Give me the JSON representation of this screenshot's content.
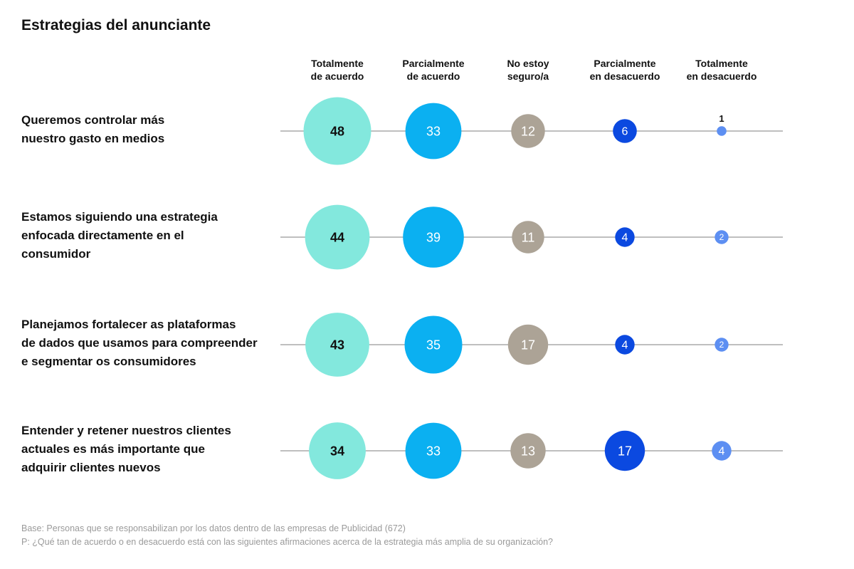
{
  "title": "Estrategias del anunciante",
  "chart_data": {
    "type": "bubble-grid",
    "title": "Estrategias del anunciante",
    "columns": [
      {
        "lines": [
          "Totalmente",
          "de acuerdo"
        ],
        "color": "#83e8dd",
        "text_color": "#111111"
      },
      {
        "lines": [
          "Parcialmente",
          "de acuerdo"
        ],
        "color": "#0bb0f1",
        "text_color": "#ffffff"
      },
      {
        "lines": [
          "No estoy",
          "seguro/a"
        ],
        "color": "#aca396",
        "text_color": "#ffffff"
      },
      {
        "lines": [
          "Parcialmente",
          "en desacuerdo"
        ],
        "color": "#0b49e0",
        "text_color": "#ffffff"
      },
      {
        "lines": [
          "Totalmente",
          "en desacuerdo"
        ],
        "color": "#5d8ff2",
        "text_color": "#ffffff"
      }
    ],
    "rows": [
      {
        "label_lines": [
          "Queremos controlar más",
          "nuestro gasto en medios"
        ],
        "values": [
          48,
          33,
          12,
          6,
          1
        ]
      },
      {
        "label_lines": [
          "Estamos siguiendo una estrategia",
          "enfocada directamente en el",
          "consumidor"
        ],
        "values": [
          44,
          39,
          11,
          4,
          2
        ]
      },
      {
        "label_lines": [
          "Planejamos fortalecer as plataformas",
          "de dados que usamos para compreender",
          "e segmentar os consumidores"
        ],
        "values": [
          43,
          35,
          17,
          4,
          2
        ]
      },
      {
        "label_lines": [
          "Entender y retener nuestros clientes",
          "actuales es más importante que",
          "adquirir clientes nuevos"
        ],
        "values": [
          34,
          33,
          13,
          17,
          4
        ]
      }
    ],
    "line_color": "#aaaaaa"
  },
  "footnotes": {
    "base": "Base: Personas que se responsabilizan por los datos dentro de las empresas de Publicidad (672)",
    "question": "P: ¿Qué tan de acuerdo o en desacuerdo está con las siguientes afirmaciones acerca de la estrategia más amplia de su organización?"
  }
}
